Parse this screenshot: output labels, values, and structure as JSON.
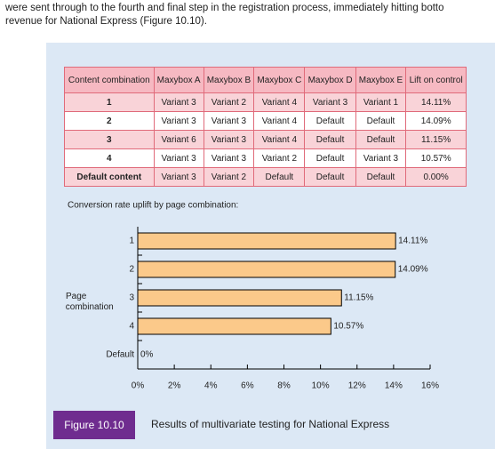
{
  "intro": [
    "were sent through to the fourth and final step in the registration process, immediately hitting botto",
    "revenue for National Express (Figure 10.10)."
  ],
  "table": {
    "header": [
      "Content combination",
      "Maxybox A",
      "Maxybox B",
      "Maxybox C",
      "Maxybox D",
      "Maxybox E",
      "Lift on control"
    ],
    "rows": [
      [
        "1",
        "Variant 3",
        "Variant 2",
        "Variant 4",
        "Variant 3",
        "Variant 1",
        "14.11%"
      ],
      [
        "2",
        "Variant 3",
        "Variant 3",
        "Variant 4",
        "Default",
        "Default",
        "14.09%"
      ],
      [
        "3",
        "Variant 6",
        "Variant 3",
        "Variant 4",
        "Default",
        "Default",
        "11.15%"
      ],
      [
        "4",
        "Variant 3",
        "Variant 3",
        "Variant 2",
        "Default",
        "Variant 3",
        "10.57%"
      ],
      [
        "Default content",
        "Variant 3",
        "Variant 2",
        "Default",
        "Default",
        "Default",
        "0.00%"
      ]
    ]
  },
  "chart_data": {
    "type": "hbar",
    "title": "Conversion rate uplift by page combination:",
    "y_label": "Page combination",
    "categories": [
      "1",
      "2",
      "3",
      "4",
      "Default"
    ],
    "values": [
      14.11,
      14.09,
      11.15,
      10.57,
      0
    ],
    "value_labels": [
      "14.11%",
      "14.09%",
      "11.15%",
      "10.57%",
      "0%"
    ],
    "color": "#fbc98a",
    "xlim": [
      0,
      16
    ],
    "xticks": [
      {
        "value": 0,
        "label": "0%"
      },
      {
        "value": 2,
        "label": "2%"
      },
      {
        "value": 4,
        "label": "4%"
      },
      {
        "value": 6,
        "label": "6%"
      },
      {
        "value": 8,
        "label": "8%"
      },
      {
        "value": 10,
        "label": "10%"
      },
      {
        "value": 12,
        "label": "12%"
      },
      {
        "value": 14,
        "label": "14%"
      },
      {
        "value": 16,
        "label": "16%"
      }
    ]
  },
  "figure": {
    "label": "Figure 10.10",
    "caption": "Results of multivariate testing for National Express"
  }
}
